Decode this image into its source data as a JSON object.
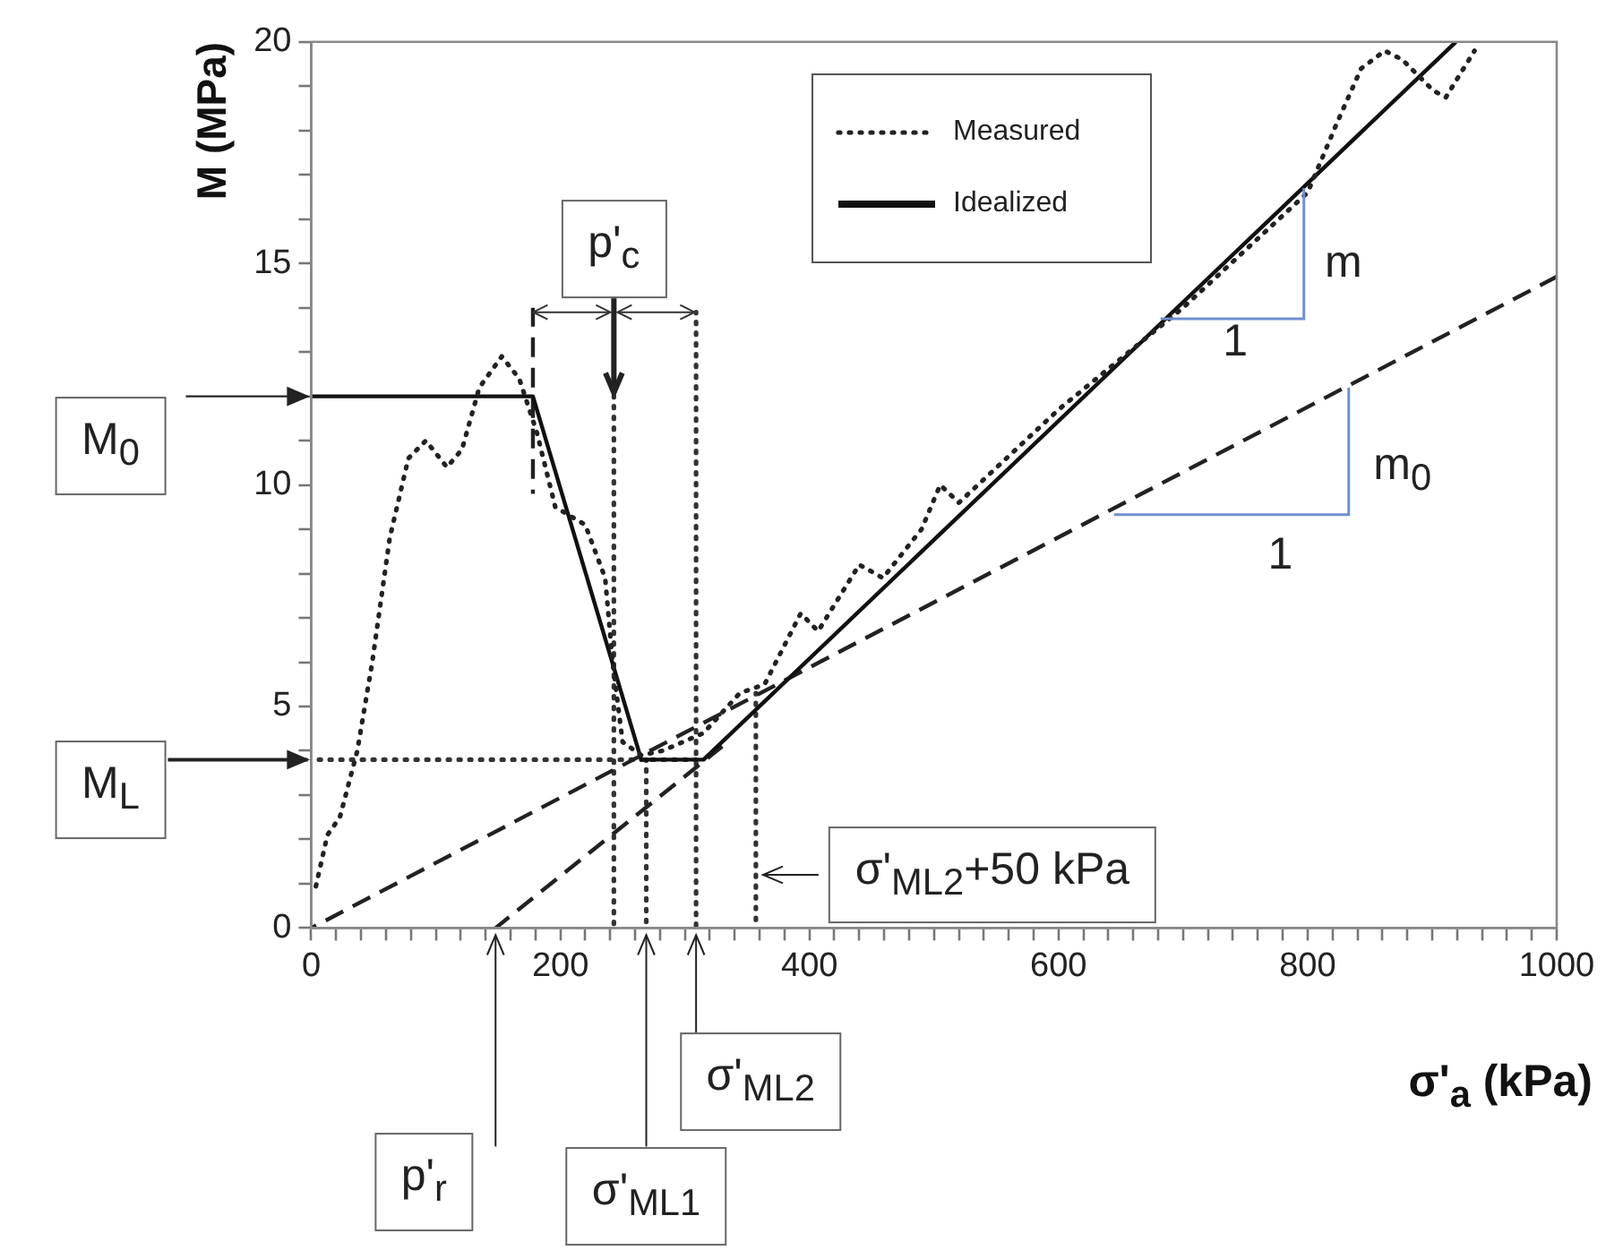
{
  "chart_data": {
    "type": "line",
    "xlabel": "σ'$_{a}$ (kPa)",
    "ylabel": "M (MPa)",
    "xlim": [
      0,
      1000
    ],
    "ylim": [
      0,
      20
    ],
    "xticks": [
      0,
      {
        "value": 20,
        "label": null
      },
      {
        "value": 40,
        "label": null
      },
      {
        "value": 60,
        "label": null
      },
      {
        "value": 80,
        "label": null
      },
      {
        "value": 100,
        "label": null
      },
      {
        "value": 120,
        "label": null
      },
      {
        "value": 140,
        "label": null
      },
      {
        "value": 160,
        "label": null
      },
      {
        "value": 180,
        "label": null
      },
      200,
      {
        "value": 220,
        "label": null
      },
      {
        "value": 240,
        "label": null
      },
      {
        "value": 260,
        "label": null
      },
      {
        "value": 280,
        "label": null
      },
      {
        "value": 300,
        "label": null
      },
      {
        "value": 320,
        "label": null
      },
      {
        "value": 340,
        "label": null
      },
      {
        "value": 360,
        "label": null
      },
      {
        "value": 380,
        "label": null
      },
      400,
      {
        "value": 420,
        "label": null
      },
      {
        "value": 440,
        "label": null
      },
      {
        "value": 460,
        "label": null
      },
      {
        "value": 480,
        "label": null
      },
      {
        "value": 500,
        "label": null
      },
      {
        "value": 520,
        "label": null
      },
      {
        "value": 540,
        "label": null
      },
      {
        "value": 560,
        "label": null
      },
      {
        "value": 580,
        "label": null
      },
      600,
      {
        "value": 620,
        "label": null
      },
      {
        "value": 640,
        "label": null
      },
      {
        "value": 660,
        "label": null
      },
      {
        "value": 680,
        "label": null
      },
      {
        "value": 700,
        "label": null
      },
      {
        "value": 720,
        "label": null
      },
      {
        "value": 740,
        "label": null
      },
      {
        "value": 760,
        "label": null
      },
      {
        "value": 780,
        "label": null
      },
      800,
      {
        "value": 820,
        "label": null
      },
      {
        "value": 840,
        "label": null
      },
      {
        "value": 860,
        "label": null
      },
      {
        "value": 880,
        "label": null
      },
      {
        "value": 900,
        "label": null
      },
      {
        "value": 920,
        "label": null
      },
      {
        "value": 940,
        "label": null
      },
      {
        "value": 960,
        "label": null
      },
      {
        "value": 980,
        "label": null
      },
      1000
    ],
    "yticks": [
      0,
      {
        "value": 1,
        "label": null
      },
      {
        "value": 2,
        "label": null
      },
      {
        "value": 3,
        "label": null
      },
      {
        "value": 4,
        "label": null
      },
      5,
      {
        "value": 6,
        "label": null
      },
      {
        "value": 7,
        "label": null
      },
      {
        "value": 8,
        "label": null
      },
      {
        "value": 9,
        "label": null
      },
      10,
      {
        "value": 11,
        "label": null
      },
      {
        "value": 12,
        "label": null
      },
      {
        "value": 13,
        "label": null
      },
      {
        "value": 14,
        "label": null
      },
      15,
      {
        "value": 16,
        "label": null
      },
      {
        "value": 17,
        "label": null
      },
      {
        "value": 18,
        "label": null
      },
      {
        "value": 19,
        "label": null
      },
      20
    ],
    "grid": false,
    "legend": "top right",
    "marker": "none",
    "series": [
      {
        "name": "Measured",
        "color": "#222222",
        "line_style": "dotted",
        "x": [
          3,
          13,
          23,
          37,
          49,
          63,
          78,
          92,
          109,
          121,
          135,
          153,
          167,
          181,
          196,
          220,
          236,
          242,
          250,
          265,
          282,
          315,
          344,
          364,
          393,
          407,
          440,
          459,
          490,
          505,
          520,
          600,
          700,
          800,
          824,
          843,
          862,
          876,
          901,
          911,
          934
        ],
        "values": [
          0.85,
          2.1,
          2.5,
          4,
          6,
          8.8,
          10.6,
          11,
          10.4,
          10.8,
          12.2,
          12.9,
          12.4,
          11.2,
          9.5,
          9.1,
          7.9,
          6,
          4.2,
          3.9,
          4.0,
          4.4,
          5.3,
          5.5,
          7.1,
          6.7,
          8.2,
          7.9,
          9.0,
          10.0,
          9.6,
          11.7,
          14.0,
          16.6,
          18.2,
          19.4,
          19.8,
          19.6,
          18.9,
          18.75,
          19.8
        ]
      },
      {
        "name": "Idealized",
        "color": "#111111",
        "line_style": "solid",
        "x": [
          0,
          178,
          265,
          315,
          919
        ],
        "values": [
          12,
          12,
          3.8,
          3.8,
          20
        ]
      },
      {
        "type": "line",
        "color": "#222222",
        "line_style": "dashed",
        "x": [
          0,
          1000
        ],
        "values": [
          0,
          14.7
        ]
      },
      {
        "type": "line",
        "color": "#222222",
        "line_style": "dashed",
        "x": [
          148,
          330
        ],
        "values": [
          0,
          4.1
        ]
      },
      {
        "type": "line",
        "color": "#222222",
        "line_style": "dashed",
        "x": [
          178,
          178
        ],
        "values": [
          9.8,
          14
        ]
      },
      {
        "type": "line",
        "color": "#333333",
        "line_style": "dotted",
        "x": [
          243,
          243
        ],
        "values": [
          0,
          12
        ]
      },
      {
        "type": "line",
        "color": "#333333",
        "line_style": "dotted",
        "x": [
          269,
          269
        ],
        "values": [
          0,
          3.8
        ]
      },
      {
        "type": "line",
        "color": "#333333",
        "line_style": "dotted",
        "x": [
          309,
          309
        ],
        "values": [
          0,
          13.9
        ]
      },
      {
        "type": "line",
        "color": "#333333",
        "line_style": "dotted",
        "x": [
          357,
          357
        ],
        "values": [
          0,
          5.3
        ]
      },
      {
        "type": "line",
        "color": "#333333",
        "line_style": "dotted",
        "x": [
          0,
          309
        ],
        "values": [
          3.8,
          3.8
        ]
      }
    ],
    "annotations": [
      {
        "text": "M$_{0}$",
        "x": 0,
        "y": 12
      },
      "M$_{L}$",
      {
        "text": "p'$_{c}$",
        "x": 243,
        "y": 12
      },
      {
        "text": "p'$_{r}$",
        "x": 148,
        "y": 0
      },
      {
        "text": "σ'$_{ML1}$",
        "x": 269,
        "y": 0
      },
      {
        "text": "σ'$_{ML2}$",
        "x": 309,
        "y": 0
      },
      {
        "text": "σ'$_{ML2}$+50 kPa",
        "x": 357,
        "y": 1.2
      },
      {
        "text": "m",
        "x": 797,
        "y": 16.7
      },
      "1",
      {
        "text": "m$_{0}$",
        "x": 833,
        "y": 12.2
      },
      "1"
    ]
  }
}
